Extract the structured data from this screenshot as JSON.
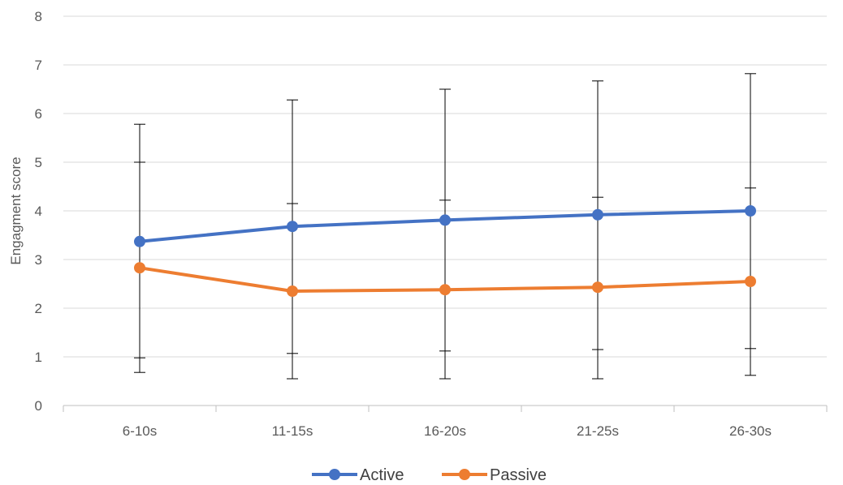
{
  "chart_data": {
    "type": "line",
    "title": "",
    "xlabel": "",
    "ylabel": "Engagment score",
    "ylim": [
      0,
      8
    ],
    "yticks": [
      0,
      1,
      2,
      3,
      4,
      5,
      6,
      7,
      8
    ],
    "grid": true,
    "legend_position": "bottom",
    "categories": [
      "6-10s",
      "11-15s",
      "16-20s",
      "21-25s",
      "26-30s"
    ],
    "series": [
      {
        "name": "Active",
        "color": "#4472C4",
        "values": [
          3.37,
          3.68,
          3.81,
          3.92,
          4.0
        ],
        "error_low": [
          0.98,
          1.07,
          1.12,
          1.15,
          1.17
        ],
        "error_high": [
          5.78,
          6.28,
          6.5,
          6.67,
          6.82
        ]
      },
      {
        "name": "Passive",
        "color": "#ED7D31",
        "values": [
          2.83,
          2.35,
          2.38,
          2.43,
          2.55
        ],
        "error_low": [
          0.68,
          0.55,
          0.55,
          0.55,
          0.62
        ],
        "error_high": [
          5.0,
          4.15,
          4.22,
          4.28,
          4.47
        ]
      }
    ]
  }
}
